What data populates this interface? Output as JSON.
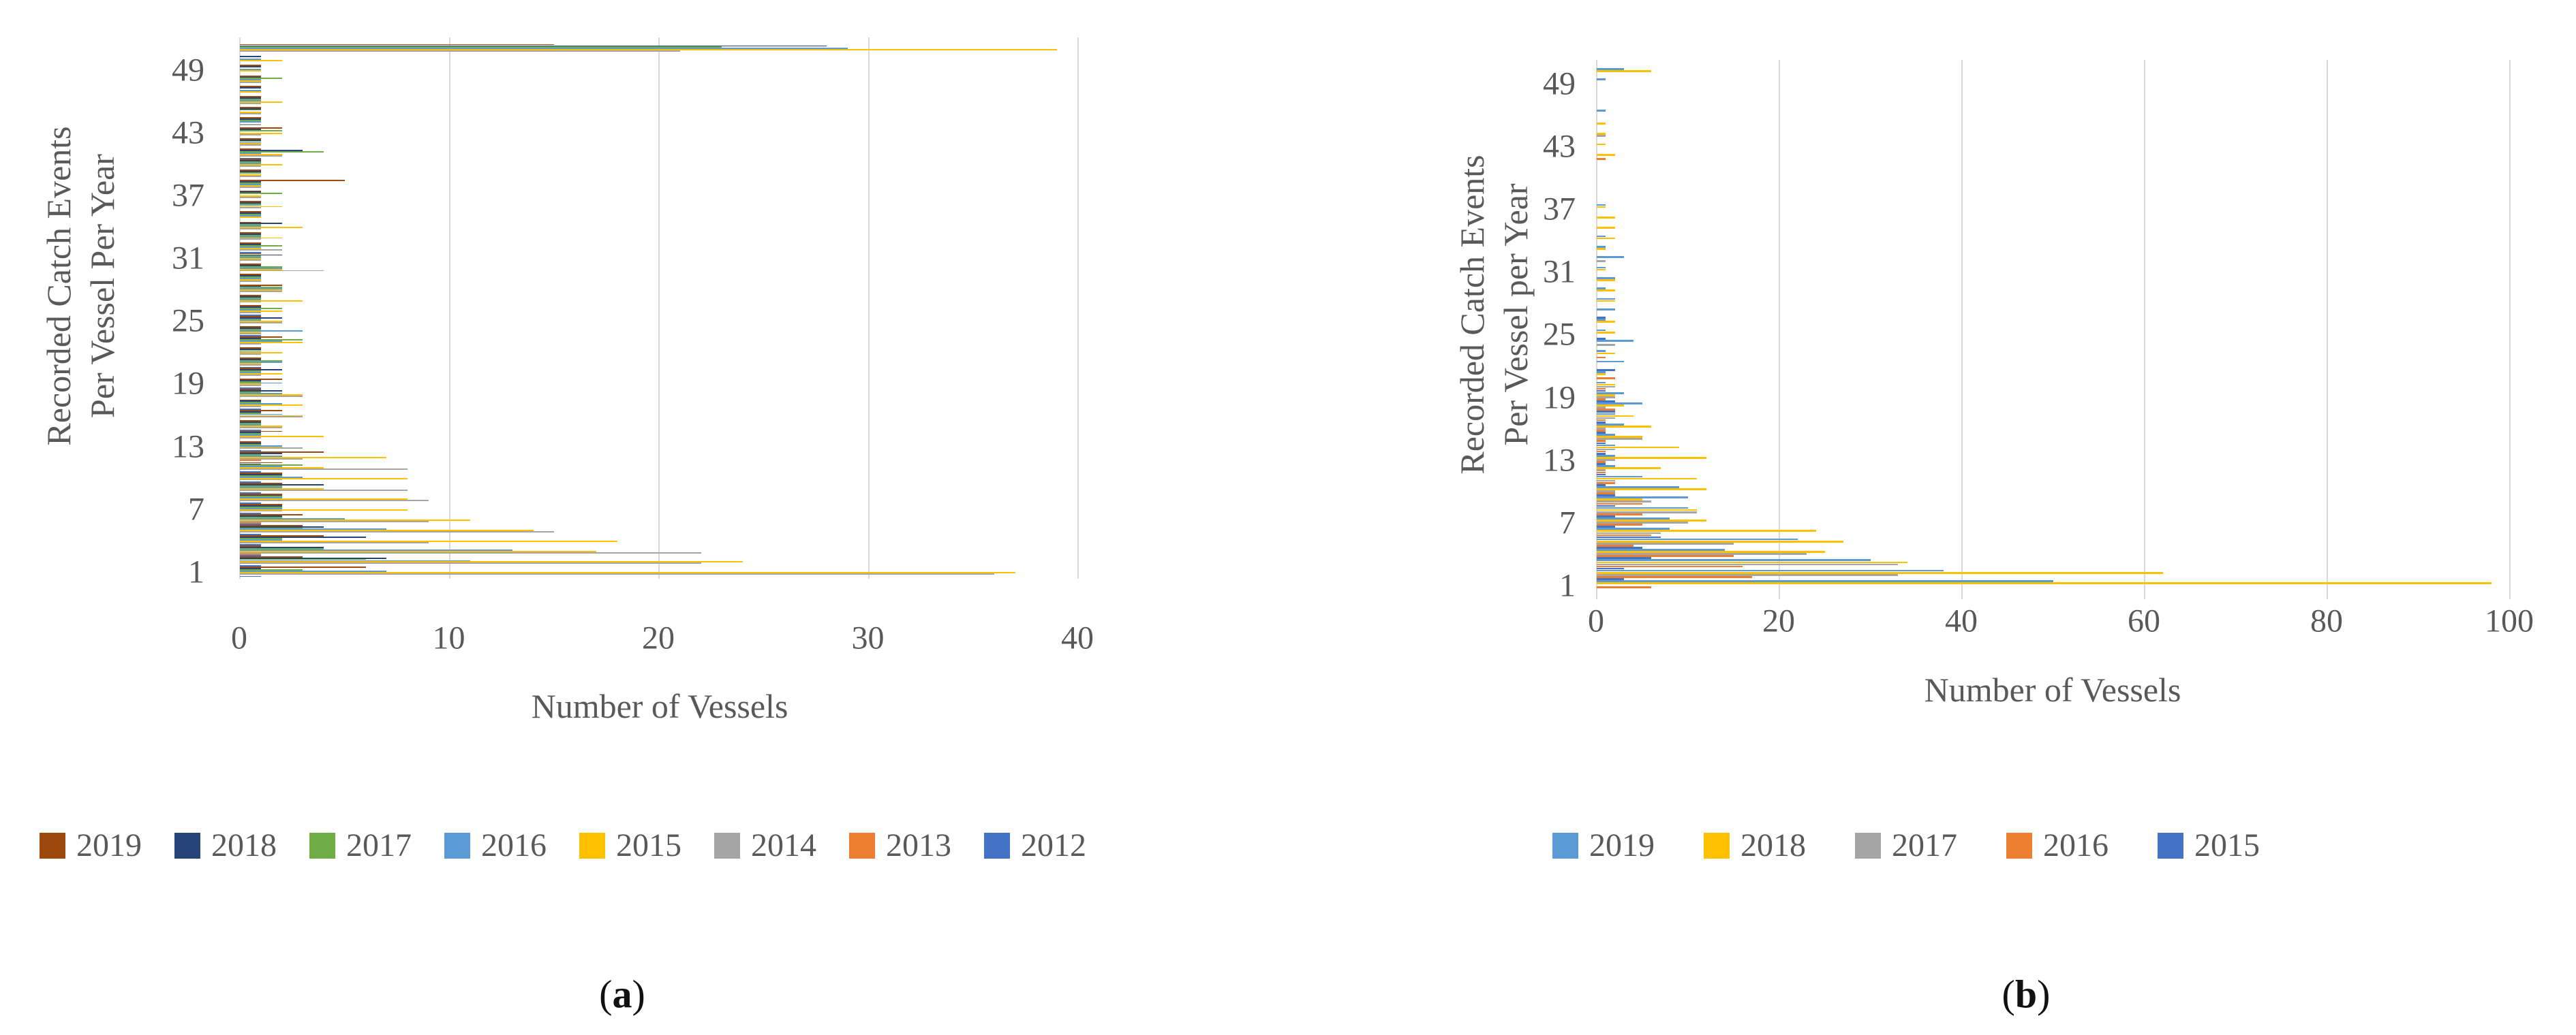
{
  "figure": {
    "caption_a_open": "(",
    "caption_a_letter": "a",
    "caption_a_close": ")",
    "caption_b_open": "(",
    "caption_b_letter": "b",
    "caption_b_close": ")"
  },
  "colors": {
    "grid": "#d9d9d9",
    "axis_text": "#595959",
    "brown": "#9e480e",
    "navy": "#264478",
    "green": "#70ad47",
    "lightblue": "#5b9bd5",
    "yellow": "#ffc000",
    "gray": "#a5a5a5",
    "orange": "#ed7d31",
    "blue": "#4472c4"
  },
  "chart_data": [
    {
      "id": "a",
      "type": "bar",
      "orientation": "horizontal",
      "title": "",
      "xlabel": "Number of Vessels",
      "ylabel_line1": "Recorded Catch Events",
      "ylabel_line2": "Per Vessel Per Year",
      "xlim": [
        0,
        40
      ],
      "x_ticks": [
        0,
        10,
        20,
        30,
        40
      ],
      "category_range": [
        1,
        51
      ],
      "y_tick_labels": [
        49,
        43,
        37,
        31,
        25,
        19,
        13,
        7,
        1
      ],
      "grid": "vertical",
      "legend_position": "bottom-left",
      "series": [
        {
          "name": "2019",
          "color": "#9e480e",
          "values": [
            6,
            3,
            1,
            4,
            3,
            3,
            2,
            2,
            2,
            2,
            2,
            4,
            1,
            2,
            1,
            2,
            1,
            1,
            2,
            1,
            1,
            1,
            2,
            1,
            1,
            1,
            1,
            2,
            1,
            1,
            1,
            1,
            1,
            1,
            1,
            1,
            1,
            5,
            1,
            1,
            1,
            1,
            2,
            1,
            1,
            1,
            1,
            1,
            1,
            0,
            15
          ]
        },
        {
          "name": "2018",
          "color": "#264478",
          "values": [
            1,
            7,
            4,
            6,
            4,
            2,
            2,
            2,
            4,
            2,
            1,
            2,
            1,
            1,
            1,
            1,
            1,
            2,
            1,
            2,
            1,
            1,
            1,
            1,
            2,
            1,
            1,
            1,
            1,
            1,
            2,
            1,
            1,
            2,
            1,
            1,
            1,
            1,
            1,
            1,
            3,
            1,
            1,
            1,
            1,
            1,
            1,
            1,
            1,
            1,
            28
          ]
        },
        {
          "name": "2017",
          "color": "#70ad47",
          "values": [
            3,
            6,
            4,
            2,
            3,
            2,
            2,
            2,
            2,
            2,
            3,
            1,
            1,
            1,
            1,
            1,
            1,
            1,
            1,
            1,
            2,
            1,
            3,
            1,
            1,
            2,
            1,
            2,
            1,
            2,
            1,
            2,
            1,
            1,
            1,
            1,
            2,
            1,
            1,
            1,
            4,
            1,
            2,
            1,
            1,
            1,
            0,
            2,
            0,
            0,
            23
          ]
        },
        {
          "name": "2016",
          "color": "#5b9bd5",
          "values": [
            7,
            11,
            13,
            2,
            7,
            5,
            2,
            2,
            2,
            3,
            2,
            2,
            2,
            1,
            1,
            2,
            2,
            2,
            2,
            1,
            2,
            1,
            2,
            3,
            1,
            1,
            1,
            2,
            1,
            2,
            1,
            1,
            1,
            1,
            1,
            1,
            0,
            1,
            0,
            1,
            1,
            1,
            0,
            1,
            0,
            1,
            1,
            1,
            1,
            1,
            29
          ]
        },
        {
          "name": "2015",
          "color": "#ffc000",
          "values": [
            37,
            24,
            17,
            18,
            14,
            11,
            8,
            8,
            4,
            8,
            4,
            7,
            2,
            4,
            2,
            3,
            3,
            3,
            1,
            2,
            1,
            2,
            3,
            1,
            2,
            2,
            3,
            2,
            1,
            2,
            1,
            1,
            2,
            3,
            1,
            2,
            1,
            1,
            1,
            2,
            2,
            1,
            2,
            0,
            1,
            2,
            1,
            1,
            1,
            2,
            39
          ]
        },
        {
          "name": "2014",
          "color": "#a5a5a5",
          "values": [
            36,
            22,
            22,
            9,
            15,
            9,
            2,
            9,
            8,
            2,
            8,
            3,
            3,
            1,
            2,
            3,
            1,
            3,
            1,
            1,
            1,
            1,
            1,
            1,
            2,
            1,
            1,
            2,
            1,
            4,
            1,
            2,
            1,
            1,
            0,
            1,
            1,
            1,
            1,
            1,
            2,
            1,
            1,
            1,
            1,
            1,
            0,
            1,
            0,
            0,
            21
          ]
        },
        {
          "name": "2013",
          "color": "#ed7d31",
          "values": [
            0,
            0,
            1,
            0,
            0,
            1,
            0,
            0,
            0,
            0,
            0,
            1,
            0,
            0,
            0,
            0,
            0,
            0,
            0,
            0,
            0,
            0,
            0,
            0,
            0,
            0,
            0,
            0,
            0,
            0,
            0,
            0,
            0,
            0,
            0,
            0,
            0,
            0,
            0,
            0,
            0,
            0,
            0,
            0,
            0,
            0,
            0,
            0,
            0,
            0,
            0
          ]
        },
        {
          "name": "2012",
          "color": "#4472c4",
          "values": [
            1,
            1,
            1,
            1,
            1,
            1,
            1,
            1,
            1,
            1,
            1,
            0,
            1,
            0,
            1,
            0,
            1,
            0,
            1,
            0,
            1,
            0,
            0,
            1,
            0,
            1,
            0,
            0,
            0,
            0,
            0,
            1,
            0,
            0,
            0,
            0,
            0,
            0,
            0,
            0,
            1,
            0,
            0,
            0,
            0,
            0,
            0,
            0,
            0,
            0,
            0
          ]
        }
      ]
    },
    {
      "id": "b",
      "type": "bar",
      "orientation": "horizontal",
      "title": "",
      "xlabel": "Number of Vessels",
      "ylabel_line1": "Recorded Catch Events",
      "ylabel_line2": "Per Vessel per Year",
      "xlim": [
        0,
        100
      ],
      "x_ticks": [
        0,
        20,
        40,
        60,
        80,
        100
      ],
      "category_range": [
        1,
        50
      ],
      "y_tick_labels": [
        49,
        43,
        37,
        31,
        25,
        19,
        13,
        7,
        1
      ],
      "grid": "vertical",
      "legend_position": "bottom-center",
      "series": [
        {
          "name": "2019",
          "color": "#5b9bd5",
          "values": [
            50,
            38,
            30,
            14,
            22,
            8,
            8,
            10,
            10,
            9,
            5,
            2,
            2,
            2,
            2,
            3,
            2,
            5,
            3,
            1,
            1,
            3,
            1,
            4,
            1,
            1,
            2,
            2,
            1,
            2,
            1,
            3,
            1,
            1,
            0,
            0,
            1,
            0,
            0,
            0,
            0,
            0,
            0,
            0,
            0,
            1,
            0,
            0,
            1,
            3
          ]
        },
        {
          "name": "2018",
          "color": "#ffc000",
          "values": [
            98,
            62,
            34,
            25,
            27,
            24,
            12,
            11,
            5,
            12,
            11,
            7,
            12,
            9,
            5,
            6,
            4,
            3,
            2,
            2,
            1,
            0,
            2,
            0,
            2,
            2,
            0,
            2,
            2,
            2,
            1,
            0,
            1,
            2,
            2,
            2,
            1,
            0,
            0,
            0,
            0,
            2,
            1,
            1,
            1,
            0,
            0,
            0,
            0,
            6
          ]
        },
        {
          "name": "2017",
          "color": "#a5a5a5",
          "values": [
            0,
            33,
            33,
            23,
            15,
            7,
            10,
            11,
            6,
            2,
            2,
            1,
            2,
            2,
            5,
            1,
            2,
            1,
            2,
            2,
            0,
            0,
            0,
            2,
            0,
            0,
            0,
            0,
            0,
            0,
            0,
            1,
            0,
            0,
            0,
            0,
            0,
            0,
            0,
            0,
            0,
            0,
            0,
            1,
            0,
            0,
            0,
            0,
            0,
            0
          ]
        },
        {
          "name": "2016",
          "color": "#ed7d31",
          "values": [
            6,
            17,
            16,
            15,
            4,
            6,
            5,
            5,
            5,
            2,
            2,
            1,
            1,
            1,
            1,
            1,
            1,
            2,
            1,
            1,
            2,
            0,
            1,
            0,
            0,
            0,
            0,
            0,
            0,
            0,
            0,
            0,
            0,
            0,
            0,
            0,
            0,
            0,
            0,
            0,
            0,
            1,
            0,
            0,
            0,
            0,
            0,
            0,
            0,
            0
          ]
        },
        {
          "name": "2015",
          "color": "#4472c4",
          "values": [
            0,
            3,
            3,
            6,
            5,
            7,
            2,
            2,
            2,
            2,
            1,
            1,
            1,
            1,
            1,
            1,
            1,
            2,
            2,
            1,
            0,
            2,
            0,
            0,
            1,
            0,
            1,
            0,
            0,
            0,
            0,
            0,
            0,
            0,
            0,
            0,
            0,
            0,
            0,
            0,
            0,
            0,
            0,
            0,
            0,
            0,
            0,
            0,
            0,
            0
          ]
        }
      ]
    }
  ]
}
